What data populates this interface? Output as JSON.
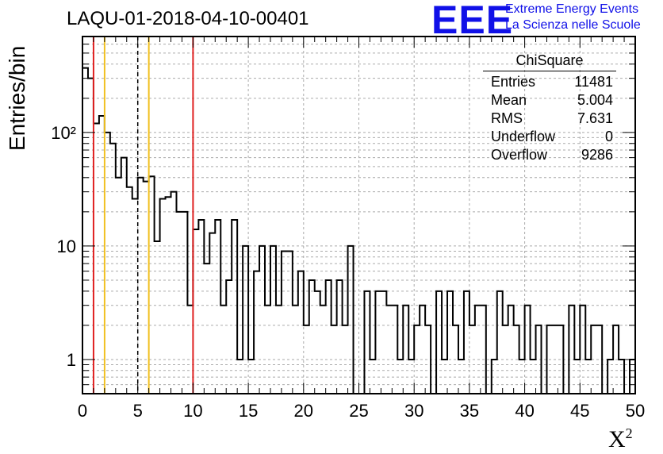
{
  "header": {
    "title": "LAQU-01-2018-04-10-00401",
    "logo_text": "EEE",
    "logo_line1": "Extreme Energy Events",
    "logo_line2": "La Scienza nelle Scuole"
  },
  "stats_box": {
    "title": "ChiSquare",
    "rows": [
      {
        "label": "Entries",
        "value": "11481"
      },
      {
        "label": "Mean",
        "value": "5.004"
      },
      {
        "label": "RMS",
        "value": "7.631"
      },
      {
        "label": "Underflow",
        "value": "0"
      },
      {
        "label": "Overflow",
        "value": "9286"
      }
    ]
  },
  "chart_data": {
    "type": "bar",
    "title": "LAQU-01-2018-04-10-00401",
    "xlabel": "X",
    "xlabel_superscript": "2",
    "ylabel": "Entries/bin",
    "xlim": [
      0,
      50
    ],
    "ylim": [
      0.5,
      700
    ],
    "yscale": "log",
    "grid": true,
    "bin_width": 0.5,
    "x_ticks": [
      "0",
      "5",
      "10",
      "15",
      "20",
      "25",
      "30",
      "35",
      "40",
      "45",
      "50"
    ],
    "y_ticks": [
      "1",
      "10",
      "10²"
    ],
    "values": [
      370,
      300,
      120,
      140,
      100,
      80,
      40,
      60,
      33,
      26,
      40,
      37,
      41,
      11,
      26,
      27,
      30,
      20,
      20,
      3,
      14,
      17,
      7,
      13,
      17,
      3,
      5,
      17,
      1,
      10,
      1,
      6,
      10,
      3,
      10,
      3,
      9,
      9,
      3,
      6,
      2,
      5,
      4,
      3,
      5,
      2,
      5,
      2,
      10,
      0,
      0,
      4,
      1,
      4,
      4,
      3,
      3,
      1,
      3,
      1,
      2,
      3,
      2,
      0,
      4,
      1,
      4,
      2,
      1,
      4,
      2,
      3,
      3,
      0,
      1,
      4,
      2,
      3,
      2,
      1,
      3,
      1,
      2,
      0,
      2,
      2,
      2,
      0,
      3,
      1,
      3,
      1,
      2,
      2,
      0,
      1,
      2,
      1,
      0,
      1
    ],
    "reference_lines": [
      {
        "x": 1,
        "color": "#e02020",
        "style": "solid"
      },
      {
        "x": 2,
        "color": "#f0c020",
        "style": "solid"
      },
      {
        "x": 5,
        "color": "#000000",
        "style": "dashed"
      },
      {
        "x": 6,
        "color": "#f0c020",
        "style": "solid"
      },
      {
        "x": 10,
        "color": "#e02020",
        "style": "solid"
      }
    ],
    "colors": {
      "histogram": "#000000",
      "grid": "#aaaaaa",
      "logo": "#1010e8"
    }
  }
}
